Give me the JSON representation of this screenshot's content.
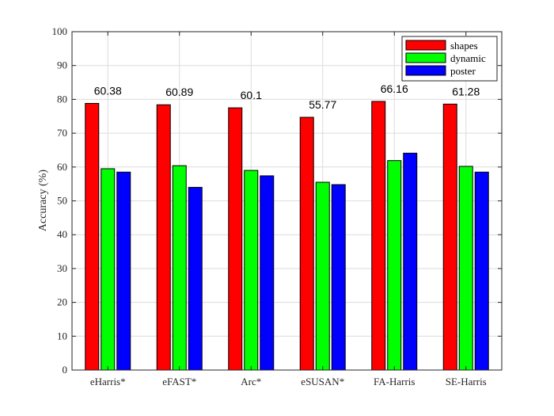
{
  "chart_data": {
    "type": "bar",
    "categories": [
      "eHarris*",
      "eFAST*",
      "Arc*",
      "eSUSAN*",
      "FA-Harris",
      "SE-Harris"
    ],
    "series": [
      {
        "name": "shapes",
        "color": "#ff0000",
        "values": [
          78.8,
          78.4,
          77.5,
          74.7,
          79.4,
          78.6
        ]
      },
      {
        "name": "dynamic",
        "color": "#00ff00",
        "values": [
          59.5,
          60.4,
          59.0,
          55.5,
          61.9,
          60.2
        ]
      },
      {
        "name": "poster",
        "color": "#0000ff",
        "values": [
          58.5,
          54.0,
          57.4,
          54.8,
          64.1,
          58.5
        ]
      }
    ],
    "group_labels": [
      "60.38",
      "60.89",
      "60.1",
      "55.77",
      "66.16",
      "61.28"
    ],
    "ylabel": "Accuracy (%)",
    "ylim": [
      0,
      100
    ],
    "yticks": [
      0,
      10,
      20,
      30,
      40,
      50,
      60,
      70,
      80,
      90,
      100
    ],
    "grid": true,
    "legend_position": "top-right"
  }
}
